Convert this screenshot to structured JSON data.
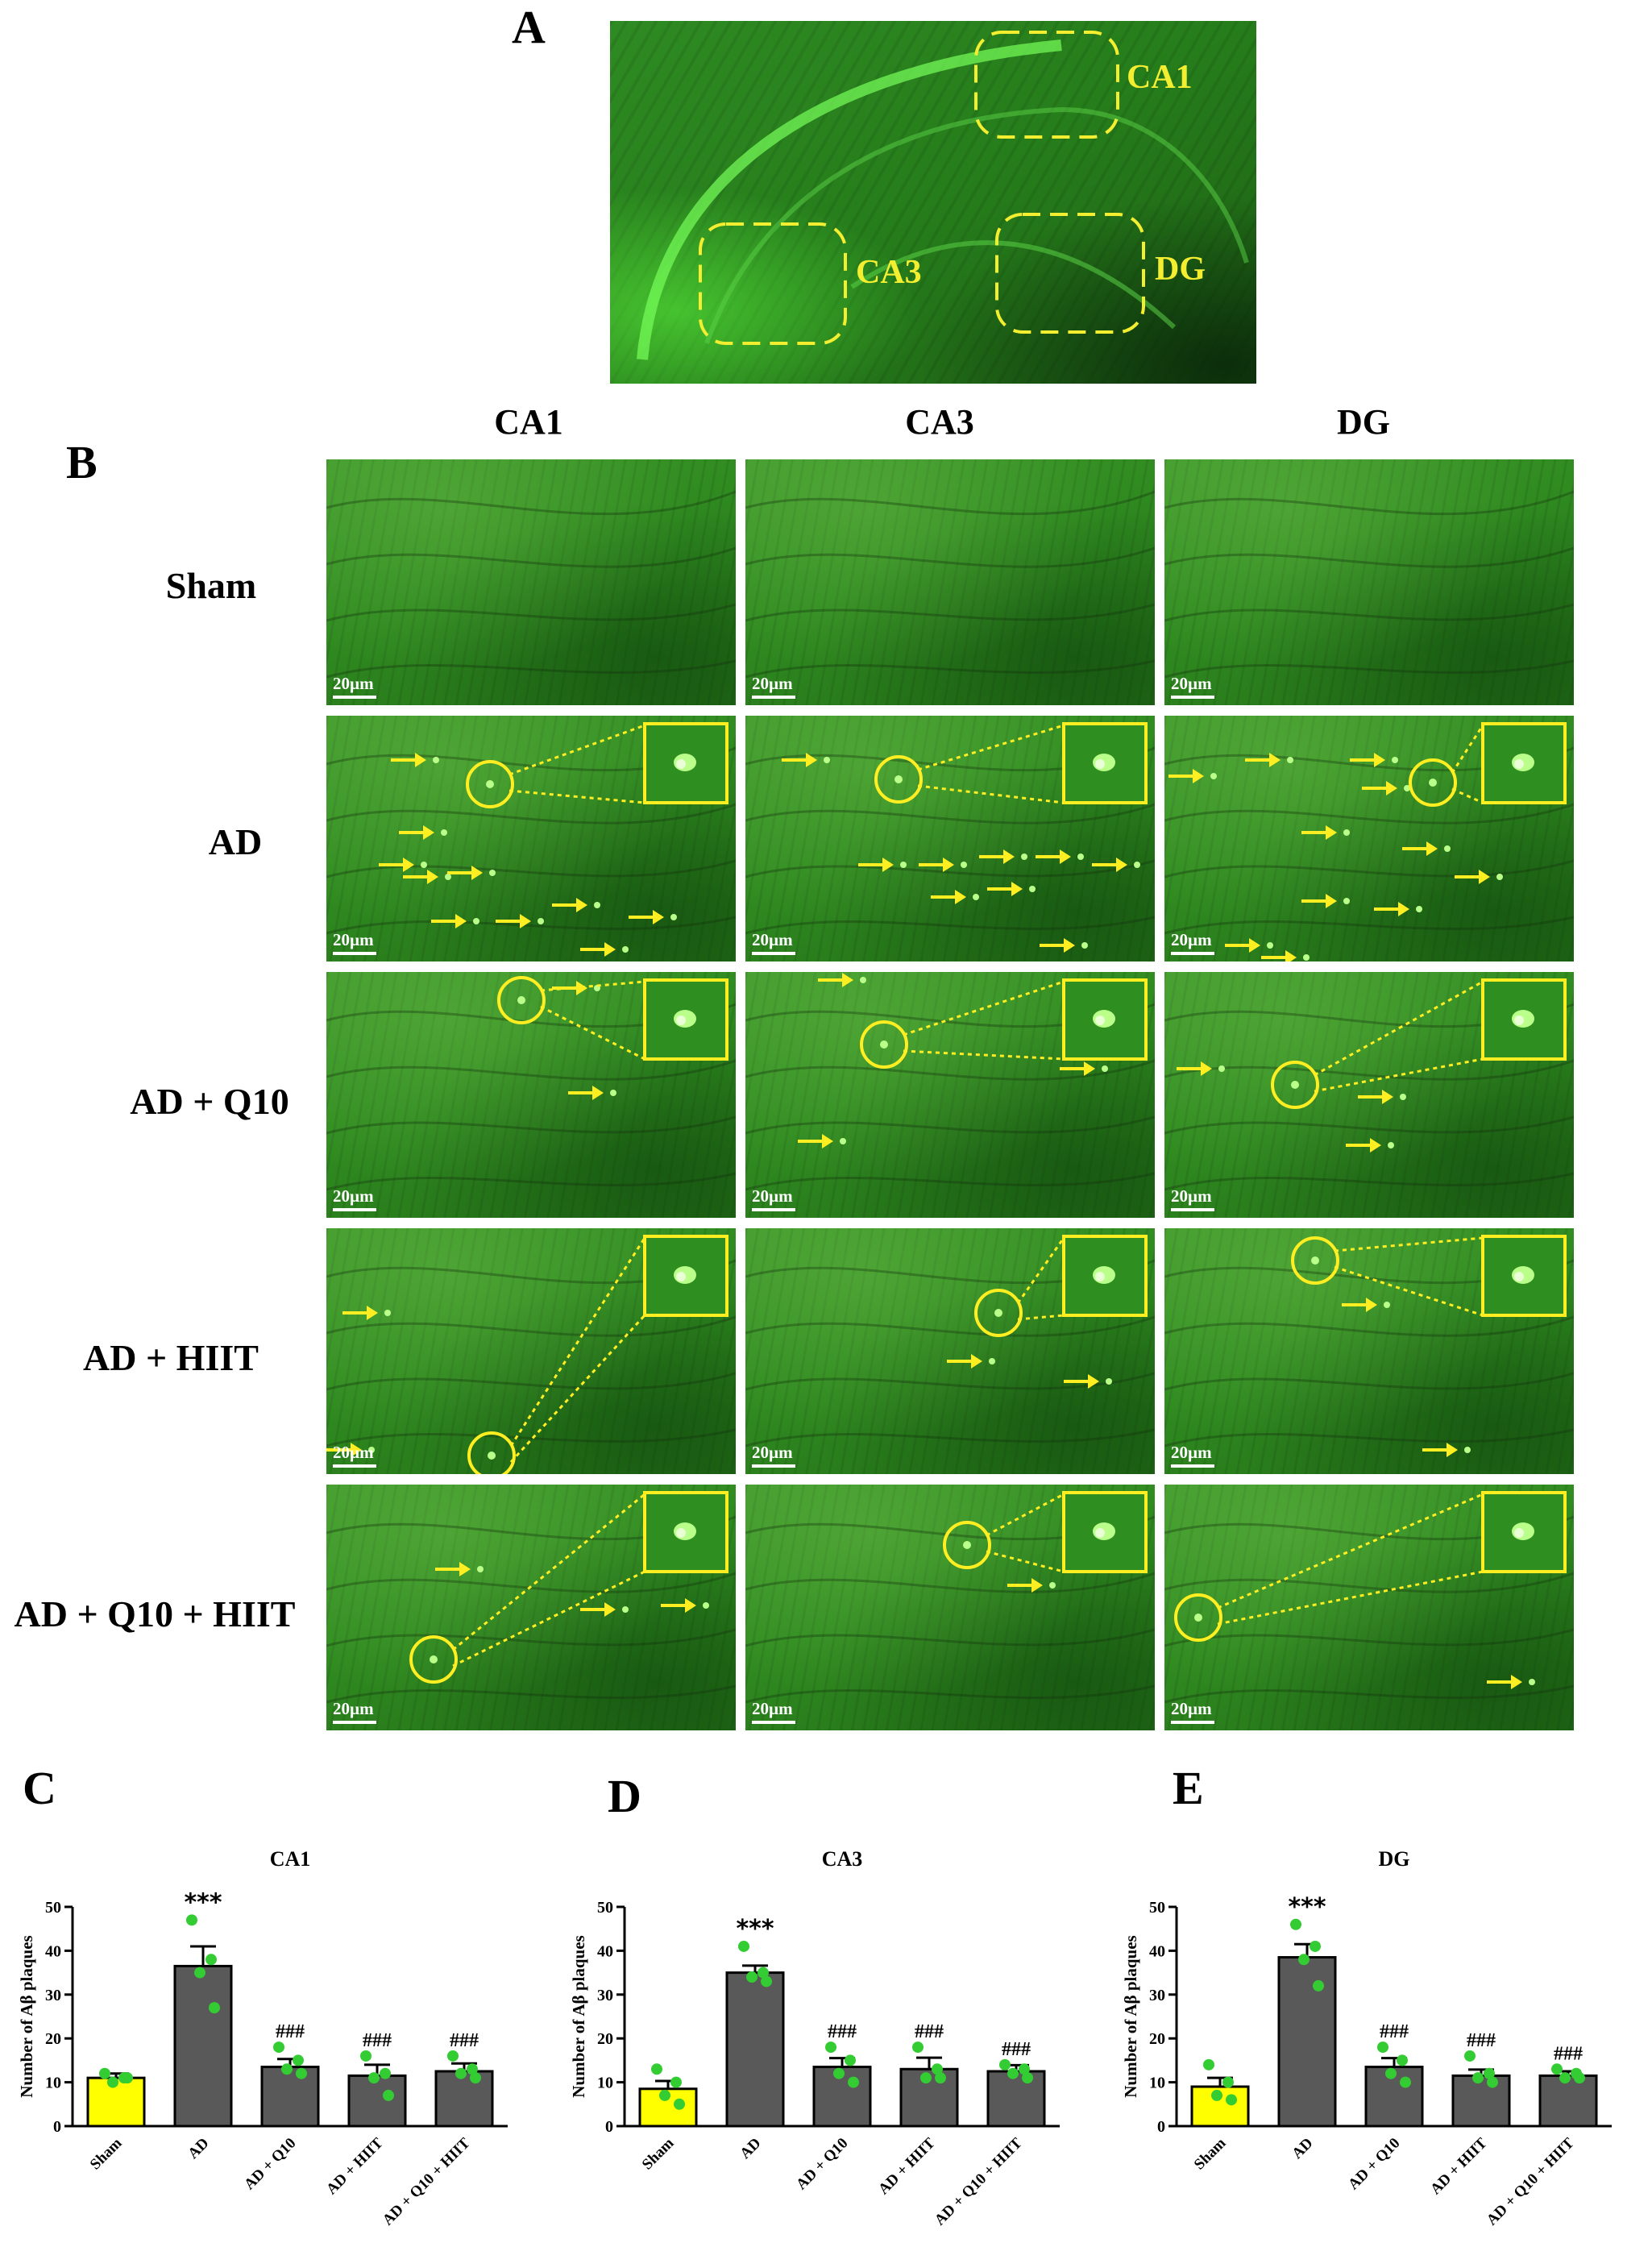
{
  "panel_labels": {
    "a": "A",
    "b": "B",
    "c": "C",
    "d": "D",
    "e": "E"
  },
  "overview_regions": [
    "CA1",
    "CA3",
    "DG"
  ],
  "columns": [
    "CA1",
    "CA3",
    "DG"
  ],
  "rows": [
    "Sham",
    "AD",
    "AD + Q10",
    "AD + HIIT",
    "AD + Q10 + HIIT"
  ],
  "scale_bar": "20µm",
  "colors": {
    "sham_bar": "#ffff00",
    "group_bar": "#595959",
    "dots": "#33cc33",
    "region_box": "#f3ee30"
  },
  "chart_data": [
    {
      "type": "bar",
      "title": "CA1",
      "ylabel": "Number of Aβ plaques",
      "ylim": [
        0,
        50
      ],
      "yticks": [
        "0",
        "10",
        "20",
        "30",
        "40",
        "50"
      ],
      "categories": [
        "Sham",
        "AD",
        "AD + Q10",
        "AD + HIIT",
        "AD + Q10 + HIIT"
      ],
      "values": [
        11,
        36.5,
        13.5,
        11.5,
        12.5
      ],
      "errors": [
        1,
        4.5,
        1.8,
        2.5,
        1.8
      ],
      "points": [
        [
          12,
          11,
          10,
          11
        ],
        [
          47,
          38,
          35,
          27
        ],
        [
          18,
          15,
          13,
          12
        ],
        [
          16,
          12,
          11,
          7
        ],
        [
          16,
          13,
          12,
          11
        ]
      ],
      "annotations": [
        "",
        "***",
        "###",
        "###",
        "###"
      ]
    },
    {
      "type": "bar",
      "title": "CA3",
      "ylabel": "Number of Aβ plaques",
      "ylim": [
        0,
        50
      ],
      "yticks": [
        "0",
        "10",
        "20",
        "30",
        "40",
        "50"
      ],
      "categories": [
        "Sham",
        "AD",
        "AD + Q10",
        "AD + HIIT",
        "AD + Q10 + HIIT"
      ],
      "values": [
        8.5,
        35,
        13.5,
        13,
        12.5
      ],
      "errors": [
        1.8,
        1.6,
        2,
        2.6,
        1.4
      ],
      "points": [
        [
          13,
          10,
          7,
          5
        ],
        [
          41,
          35,
          34,
          33
        ],
        [
          18,
          15,
          12,
          10
        ],
        [
          18,
          13,
          11,
          11
        ],
        [
          14,
          13,
          12,
          11
        ]
      ],
      "annotations": [
        "",
        "***",
        "###",
        "###",
        "###"
      ]
    },
    {
      "type": "bar",
      "title": "DG",
      "ylabel": "Number of Aβ plaques",
      "ylim": [
        0,
        50
      ],
      "yticks": [
        "0",
        "10",
        "20",
        "30",
        "40",
        "50"
      ],
      "categories": [
        "Sham",
        "AD",
        "AD + Q10",
        "AD + HIIT",
        "AD + Q10 + HIIT"
      ],
      "values": [
        9,
        38.5,
        13.5,
        11.5,
        11.5
      ],
      "errors": [
        2,
        3,
        2,
        1.4,
        1
      ],
      "points": [
        [
          14,
          10,
          7,
          6
        ],
        [
          46,
          41,
          38,
          32
        ],
        [
          18,
          15,
          12,
          10
        ],
        [
          16,
          12,
          11,
          10
        ],
        [
          13,
          12,
          11,
          11
        ]
      ],
      "annotations": [
        "",
        "***",
        "###",
        "###",
        "###"
      ]
    }
  ]
}
